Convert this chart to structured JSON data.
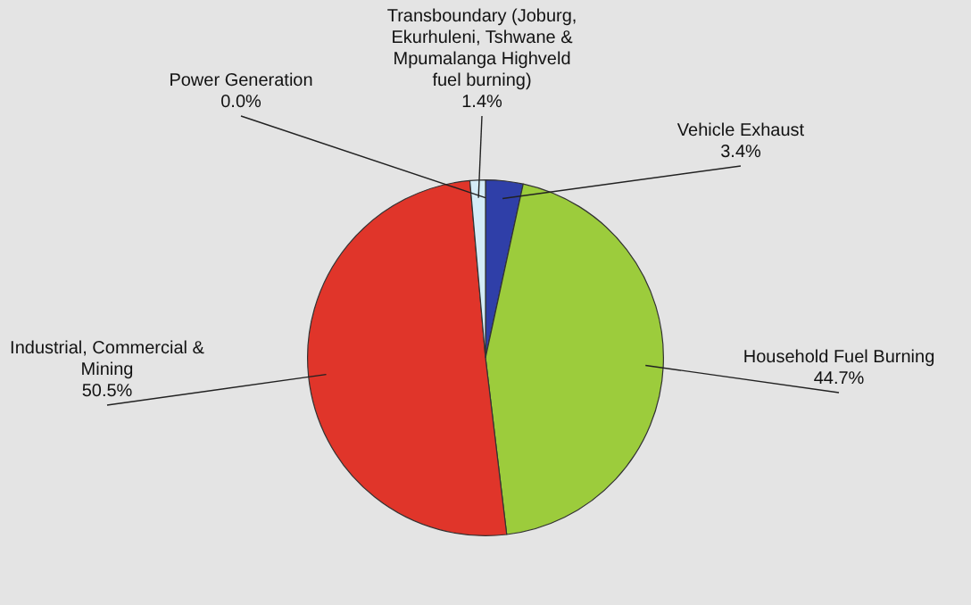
{
  "chart_data": {
    "type": "pie",
    "categories": [
      "Power Generation",
      "Vehicle Exhaust",
      "Household Fuel Burning",
      "Industrial, Commercial & Mining",
      "Transboundary (Joburg, Ekurhuleni, Tshwane & Mpumalanga Highveld fuel burning)"
    ],
    "values": [
      0.0,
      3.4,
      44.7,
      50.5,
      1.4
    ],
    "colors": [
      "#8a8a8a",
      "#2f3fa8",
      "#9ccc3c",
      "#e0352a",
      "#d4ecf7"
    ],
    "value_labels": [
      "0.0%",
      "3.4%",
      "44.7%",
      "50.5%",
      "1.4%"
    ],
    "legend": false
  }
}
